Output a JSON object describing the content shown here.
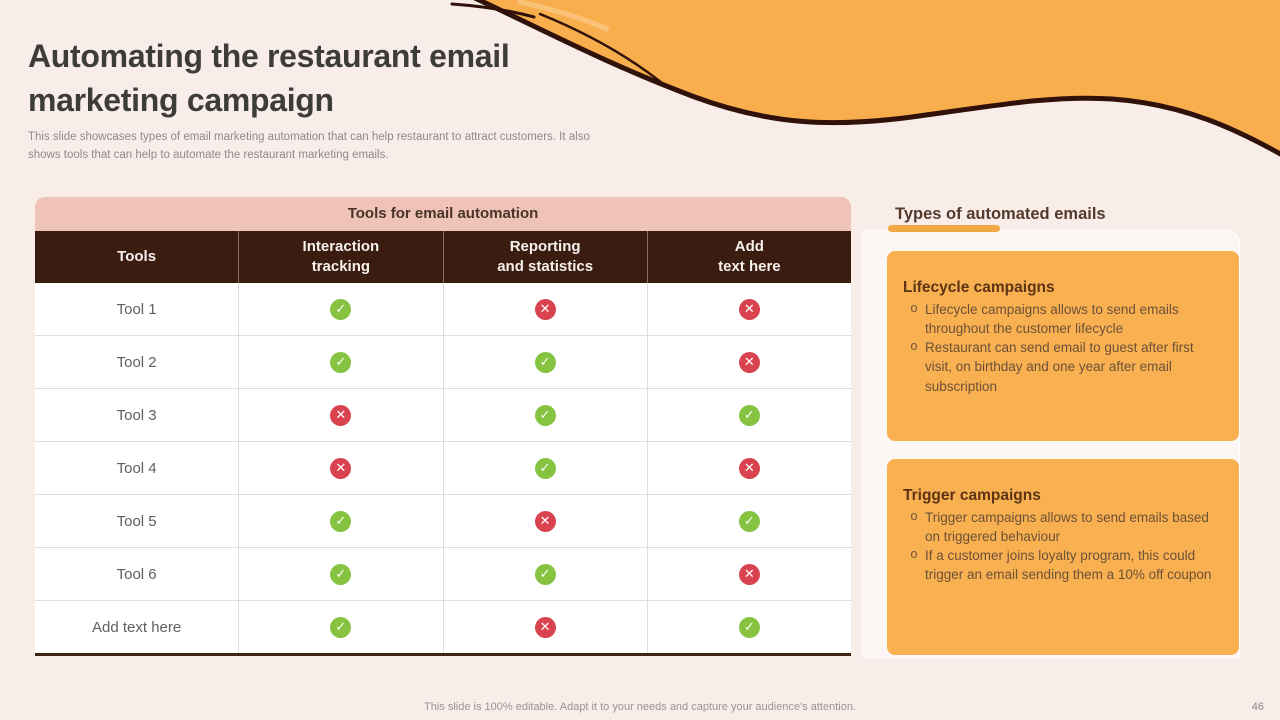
{
  "slide": {
    "title": "Automating the restaurant email marketing campaign",
    "subtitle": "This slide showcases types of email marketing automation that can help restaurant to attract customers. It also shows tools that can help to automate the restaurant marketing emails.",
    "footer_note": "This slide is 100% editable. Adapt it to your needs and capture your audience's attention.",
    "page_number": "46"
  },
  "table": {
    "title": "Tools for email automation",
    "columns": [
      {
        "id": "tools",
        "lines": [
          "Tools"
        ]
      },
      {
        "id": "interaction-tracking",
        "lines": [
          "Interaction",
          "tracking"
        ]
      },
      {
        "id": "reporting-and-statistics",
        "lines": [
          "Reporting",
          "and statistics"
        ]
      },
      {
        "id": "add-text-here",
        "lines": [
          "Add",
          "text here"
        ]
      }
    ],
    "rows": [
      {
        "tool": "Tool 1",
        "values": [
          "yes",
          "no",
          "no"
        ]
      },
      {
        "tool": "Tool 2",
        "values": [
          "yes",
          "yes",
          "no"
        ]
      },
      {
        "tool": "Tool 3",
        "values": [
          "no",
          "yes",
          "yes"
        ]
      },
      {
        "tool": "Tool 4",
        "values": [
          "no",
          "yes",
          "no"
        ]
      },
      {
        "tool": "Tool 5",
        "values": [
          "yes",
          "no",
          "yes"
        ]
      },
      {
        "tool": "Tool 6",
        "values": [
          "yes",
          "yes",
          "no"
        ]
      },
      {
        "tool": "Add text here",
        "values": [
          "yes",
          "no",
          "yes"
        ]
      }
    ]
  },
  "right_panel": {
    "heading": "Types of automated emails",
    "cards": [
      {
        "id": "lifecycle-campaigns",
        "title": "Lifecycle campaigns",
        "bullets": [
          "Lifecycle campaigns allows to send emails throughout the customer lifecycle",
          "Restaurant can send email to guest after first visit, on birthday and one year after email subscription"
        ]
      },
      {
        "id": "trigger-campaigns",
        "title": "Trigger campaigns",
        "bullets": [
          "Trigger campaigns allows to send emails based on triggered behaviour",
          "If a customer joins loyalty program, this could trigger an email sending them a 10% off coupon"
        ]
      }
    ]
  },
  "icons": {
    "check_glyph": "✓",
    "cross_glyph": "✕",
    "bullet_glyph": "o"
  },
  "colors": {
    "background": "#F9EDEA",
    "accent_orange": "#F8AE4D",
    "underline_orange": "#F0A943",
    "dark_brown_header": "#3A1C11",
    "wave_outline": "#31120A",
    "table_title_bg": "#EFC3B6",
    "check_green": "#85C341",
    "cross_red": "#D9434F",
    "card_orange": "#F9B050"
  }
}
